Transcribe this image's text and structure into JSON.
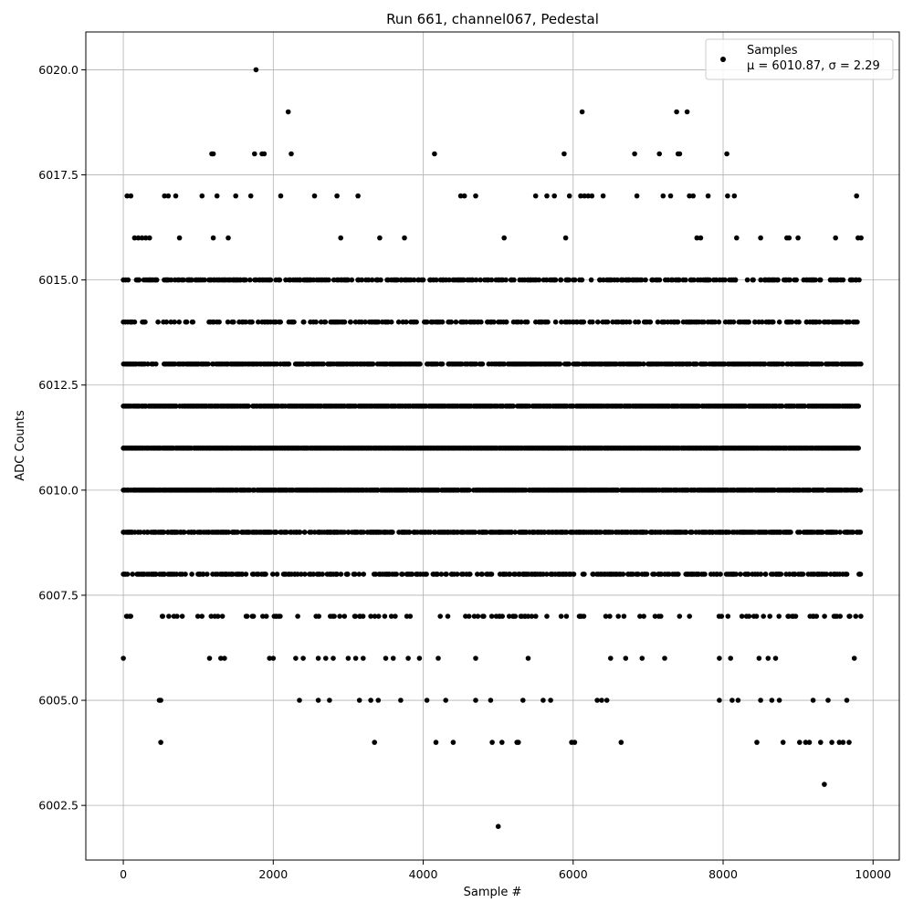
{
  "chart_data": {
    "type": "scatter",
    "title": "Run 661, channel067, Pedestal",
    "xlabel": "Sample #",
    "ylabel": "ADC Counts",
    "xlim": [
      -500,
      10350
    ],
    "ylim": [
      6001.2,
      6020.9
    ],
    "grid": true,
    "legend_position": "top-right",
    "marker_color": "#000000",
    "xticks": [
      0,
      2000,
      4000,
      6000,
      8000,
      10000
    ],
    "xtick_labels": [
      "0",
      "2000",
      "4000",
      "6000",
      "8000",
      "10000"
    ],
    "yticks": [
      6002.5,
      6005.0,
      6007.5,
      6010.0,
      6012.5,
      6015.0,
      6017.5,
      6020.0
    ],
    "ytick_labels": [
      "6002.5",
      "6005.0",
      "6007.5",
      "6010.0",
      "6012.5",
      "6015.0",
      "6017.5",
      "6020.0"
    ],
    "series": [
      {
        "name": "Samples",
        "stats_label": "μ = 6010.87, σ = 2.29",
        "points": [
          [
            0,
            6006
          ],
          [
            0,
            6014
          ],
          [
            0,
            6015
          ],
          [
            0,
            6012
          ],
          [
            0,
            6011
          ],
          [
            0,
            6010
          ],
          [
            0,
            6009
          ],
          [
            0,
            6008
          ],
          [
            50,
            6017
          ],
          [
            50,
            6007
          ],
          [
            100,
            6017
          ],
          [
            100,
            6014
          ],
          [
            150,
            6016
          ],
          [
            150,
            6014
          ],
          [
            200,
            6016
          ],
          [
            250,
            6016
          ],
          [
            300,
            6016
          ],
          [
            350,
            6016
          ],
          [
            480,
            6005
          ],
          [
            500,
            6005
          ],
          [
            500,
            6004
          ],
          [
            550,
            6017
          ],
          [
            600,
            6017
          ],
          [
            700,
            6017
          ],
          [
            750,
            6016
          ],
          [
            1050,
            6017
          ],
          [
            1150,
            6006
          ],
          [
            1180,
            6018
          ],
          [
            1200,
            6018
          ],
          [
            1200,
            6016
          ],
          [
            1250,
            6017
          ],
          [
            1300,
            6006
          ],
          [
            1350,
            6006
          ],
          [
            1400,
            6016
          ],
          [
            1500,
            6017
          ],
          [
            1650,
            6007
          ],
          [
            1700,
            6017
          ],
          [
            1720,
            6007
          ],
          [
            1750,
            6018
          ],
          [
            1770,
            6020
          ],
          [
            1850,
            6018
          ],
          [
            1880,
            6018
          ],
          [
            1860,
            6007
          ],
          [
            1950,
            6006
          ],
          [
            2000,
            6006
          ],
          [
            2100,
            6017
          ],
          [
            2200,
            6019
          ],
          [
            2240,
            6018
          ],
          [
            2300,
            6006
          ],
          [
            2350,
            6005
          ],
          [
            2400,
            6006
          ],
          [
            2550,
            6017
          ],
          [
            2600,
            6006
          ],
          [
            2600,
            6005
          ],
          [
            2700,
            6006
          ],
          [
            2750,
            6005
          ],
          [
            2800,
            6006
          ],
          [
            2850,
            6017
          ],
          [
            2900,
            6016
          ],
          [
            3000,
            6006
          ],
          [
            3100,
            6006
          ],
          [
            3150,
            6005
          ],
          [
            3130,
            6017
          ],
          [
            3200,
            6006
          ],
          [
            3300,
            6005
          ],
          [
            3350,
            6004
          ],
          [
            3400,
            6005
          ],
          [
            3420,
            6016
          ],
          [
            3500,
            6006
          ],
          [
            3600,
            6006
          ],
          [
            3700,
            6005
          ],
          [
            3750,
            6016
          ],
          [
            3800,
            6006
          ],
          [
            3950,
            6006
          ],
          [
            4050,
            6005
          ],
          [
            4150,
            6018
          ],
          [
            4170,
            6004
          ],
          [
            4200,
            6006
          ],
          [
            4300,
            6005
          ],
          [
            4400,
            6004
          ],
          [
            4500,
            6017
          ],
          [
            4550,
            6017
          ],
          [
            4700,
            6017
          ],
          [
            4700,
            6006
          ],
          [
            4700,
            6005
          ],
          [
            4900,
            6005
          ],
          [
            4920,
            6004
          ],
          [
            5000,
            6002
          ],
          [
            5050,
            6004
          ],
          [
            5080,
            6016
          ],
          [
            5250,
            6004
          ],
          [
            5270,
            6004
          ],
          [
            5330,
            6005
          ],
          [
            5400,
            6006
          ],
          [
            5500,
            6017
          ],
          [
            5600,
            6005
          ],
          [
            5650,
            6017
          ],
          [
            5700,
            6005
          ],
          [
            5750,
            6017
          ],
          [
            5880,
            6018
          ],
          [
            5900,
            6016
          ],
          [
            5950,
            6017
          ],
          [
            5980,
            6004
          ],
          [
            6020,
            6004
          ],
          [
            6100,
            6017
          ],
          [
            6120,
            6019
          ],
          [
            6150,
            6017
          ],
          [
            6200,
            6017
          ],
          [
            6250,
            6017
          ],
          [
            6320,
            6005
          ],
          [
            6380,
            6005
          ],
          [
            6400,
            6017
          ],
          [
            6450,
            6005
          ],
          [
            6500,
            6006
          ],
          [
            6640,
            6004
          ],
          [
            6700,
            6006
          ],
          [
            6820,
            6018
          ],
          [
            6850,
            6017
          ],
          [
            6920,
            6006
          ],
          [
            7150,
            6018
          ],
          [
            7200,
            6017
          ],
          [
            7220,
            6006
          ],
          [
            7300,
            6017
          ],
          [
            7380,
            6019
          ],
          [
            7400,
            6018
          ],
          [
            7420,
            6018
          ],
          [
            7520,
            6019
          ],
          [
            7550,
            6017
          ],
          [
            7600,
            6017
          ],
          [
            7650,
            6016
          ],
          [
            7700,
            6016
          ],
          [
            7800,
            6017
          ],
          [
            7950,
            6006
          ],
          [
            7950,
            6005
          ],
          [
            8050,
            6018
          ],
          [
            8060,
            6017
          ],
          [
            8100,
            6006
          ],
          [
            8120,
            6005
          ],
          [
            8150,
            6017
          ],
          [
            8180,
            6016
          ],
          [
            8200,
            6005
          ],
          [
            8450,
            6004
          ],
          [
            8480,
            6006
          ],
          [
            8500,
            6005
          ],
          [
            8500,
            6016
          ],
          [
            8600,
            6006
          ],
          [
            8650,
            6005
          ],
          [
            8700,
            6006
          ],
          [
            8750,
            6005
          ],
          [
            8800,
            6004
          ],
          [
            8850,
            6016
          ],
          [
            8880,
            6016
          ],
          [
            9000,
            6016
          ],
          [
            9020,
            6004
          ],
          [
            9100,
            6004
          ],
          [
            9150,
            6004
          ],
          [
            9200,
            6005
          ],
          [
            9300,
            6004
          ],
          [
            9350,
            6003
          ],
          [
            9400,
            6005
          ],
          [
            9450,
            6004
          ],
          [
            9500,
            6016
          ],
          [
            9550,
            6004
          ],
          [
            9600,
            6004
          ],
          [
            9650,
            6005
          ],
          [
            9680,
            6004
          ],
          [
            9750,
            6006
          ],
          [
            9780,
            6017
          ],
          [
            9800,
            6016
          ],
          [
            9840,
            6016
          ]
        ]
      }
    ]
  }
}
